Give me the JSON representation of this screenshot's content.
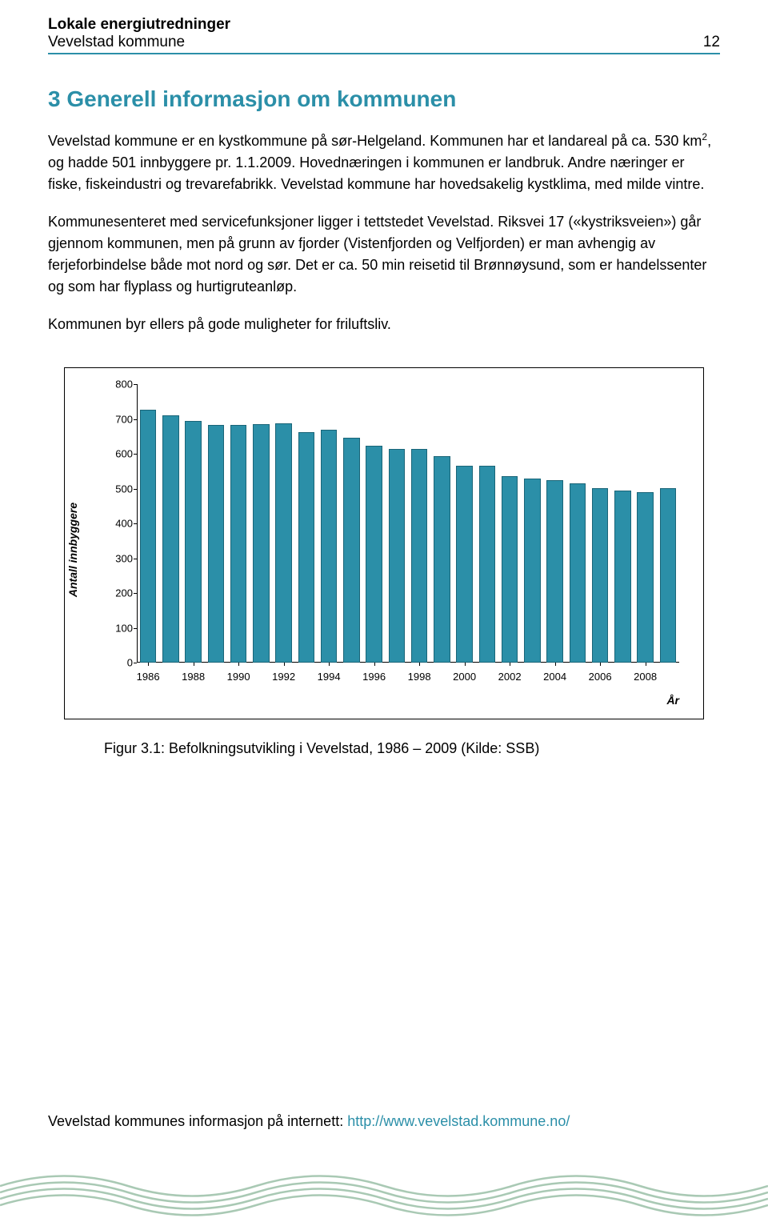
{
  "header": {
    "title": "Lokale energiutredninger",
    "subtitle": "Vevelstad kommune",
    "page_number": "12"
  },
  "section": {
    "heading": "3  Generell informasjon om kommunen",
    "p1_a": "Vevelstad kommune er en kystkommune på sør-Helgeland. Kommunen har et landareal på ca. 530 km",
    "p1_sup": "2",
    "p1_b": ", og hadde 501 innbyggere pr. 1.1.2009. Hovednæringen i kommunen er landbruk. Andre næringer er fiske, fiskeindustri og trevarefabrikk. Vevelstad kommune har hovedsakelig kystklima, med milde vintre.",
    "p2": "Kommunesenteret med servicefunksjoner ligger i tettstedet Vevelstad. Riksvei 17 («kystriksveien») går gjennom kommunen, men på grunn av fjorder (Vistenfjorden og Velfjorden) er man avhengig av ferjeforbindelse både mot nord og sør. Det er ca. 50 min reisetid til Brønnøysund, som er handelssenter og som har flyplass og hurtigruteanløp.",
    "p3": "Kommunen byr ellers på gode muligheter for friluftsliv."
  },
  "chart": {
    "type": "bar",
    "y_label": "Antall innbyggere",
    "x_label": "År",
    "ylim": [
      0,
      800
    ],
    "ytick_step": 100,
    "y_ticks": [
      0,
      100,
      200,
      300,
      400,
      500,
      600,
      700,
      800
    ],
    "x_tick_labels": [
      "1986",
      "1988",
      "1990",
      "1992",
      "1994",
      "1996",
      "1998",
      "2000",
      "2002",
      "2004",
      "2006",
      "2008"
    ],
    "years": [
      1986,
      1987,
      1988,
      1989,
      1990,
      1991,
      1992,
      1993,
      1994,
      1995,
      1996,
      1997,
      1998,
      1999,
      2000,
      2001,
      2002,
      2003,
      2004,
      2005,
      2006,
      2007,
      2008,
      2009
    ],
    "values": [
      726,
      710,
      695,
      683,
      682,
      685,
      688,
      662,
      668,
      647,
      623,
      614,
      613,
      594,
      565,
      565,
      535,
      528,
      524,
      516,
      502,
      494,
      489,
      501
    ],
    "bar_color": "#2b8fa8",
    "bar_border": "#1a6578",
    "background_color": "#ffffff",
    "axis_color": "#000000",
    "label_fontsize": 14,
    "tick_fontsize": 13,
    "bar_width_ratio": 0.72,
    "x_domain": [
      1985,
      2010
    ]
  },
  "figure_caption": "Figur 3.1: Befolkningsutvikling i Vevelstad, 1986 – 2009  (Kilde: SSB)",
  "footer": {
    "text_prefix": "Vevelstad kommunes informasjon på internett: ",
    "link": "http://www.vevelstad.kommune.no/"
  },
  "wave_color": "#a9c9b4"
}
